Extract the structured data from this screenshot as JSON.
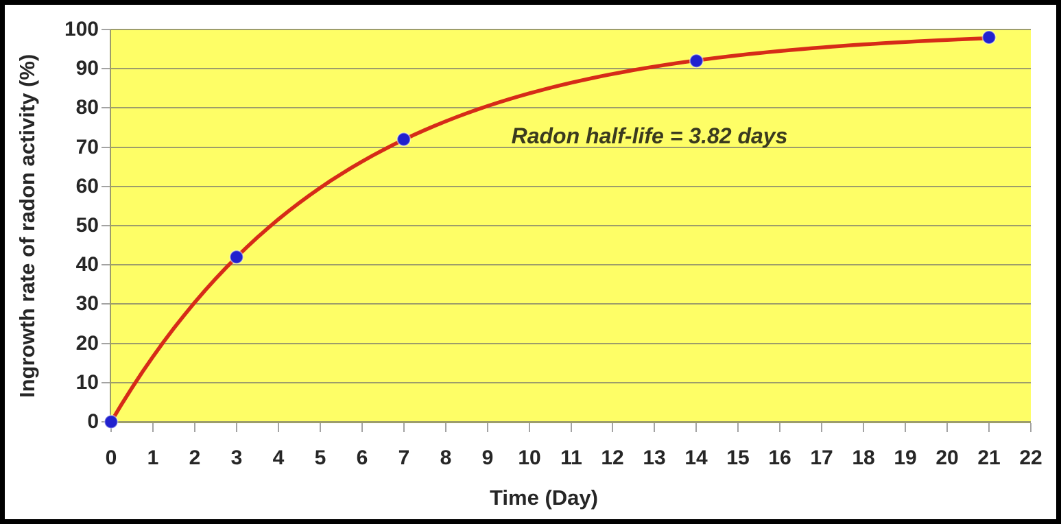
{
  "chart_data": {
    "type": "line",
    "title": "",
    "xlabel": "Time (Day)",
    "ylabel": "Ingrowth rate of radon activity (%)",
    "annotation": "Radon half-life = 3.82 days",
    "x": [
      0,
      3,
      7,
      14,
      21
    ],
    "y": [
      0,
      42,
      72,
      92,
      98
    ],
    "xlim": [
      0,
      22
    ],
    "ylim": [
      0,
      100
    ],
    "x_ticks": [
      0,
      1,
      2,
      3,
      4,
      5,
      6,
      7,
      8,
      9,
      10,
      11,
      12,
      13,
      14,
      15,
      16,
      17,
      18,
      19,
      20,
      21,
      22
    ],
    "y_ticks": [
      0,
      10,
      20,
      30,
      40,
      50,
      60,
      70,
      80,
      90,
      100
    ],
    "grid": "horizontal-major",
    "legend": "none",
    "marker": "circle",
    "curve_model": {
      "formula": "y = 100 * (1 - 2^(-t / half_life_days))",
      "half_life_days": 3.82,
      "t_start": 0,
      "t_end": 21
    },
    "colors": {
      "plot_bg": "#FEFE66",
      "line": "#D62B18",
      "marker": "#2121CE",
      "grid": "#9D9D6B",
      "outer_tick": "#A3A3A3",
      "text": "#262626",
      "annotation_text": "#3A3A1F",
      "frame": "#000000"
    }
  }
}
